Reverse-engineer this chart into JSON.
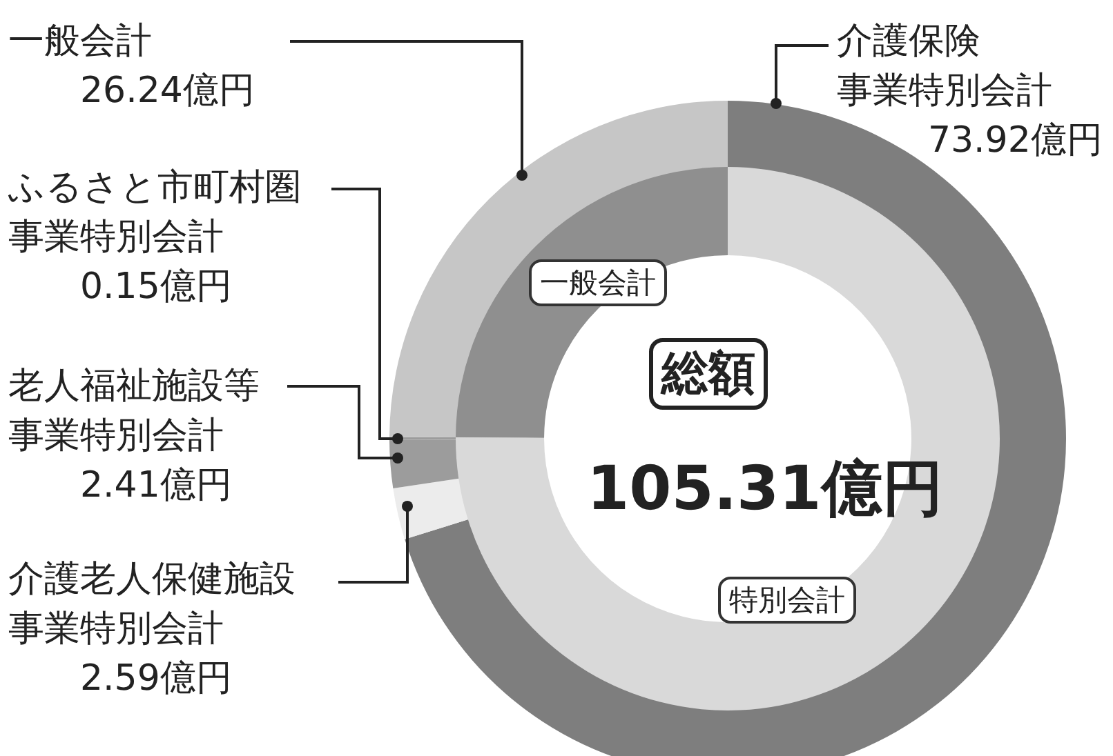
{
  "chart_data": [
    {
      "type": "donut",
      "categories": [
        "介護保険事業特別会計",
        "介護老人保健施設事業特別会計",
        "老人福祉施設等事業特別会計",
        "ふるさと市町村圏事業特別会計",
        "一般会計"
      ],
      "values": [
        73.92,
        2.59,
        2.41,
        0.15,
        26.24
      ],
      "colors": [
        "#7e7e7e",
        "#ececec",
        "#9c9c9c",
        "#9c9c9c",
        "#c6c6c6"
      ],
      "value_labels": [
        "73.92億円",
        "2.59億円",
        "2.41億円",
        "0.15億円",
        "26.24億円"
      ]
    },
    {
      "type": "donut",
      "title": "総額",
      "categories": [
        "特別会計",
        "一般会計"
      ],
      "values": [
        75.08,
        24.92
      ],
      "colors": [
        "#d9d9d9",
        "#8f8f8f"
      ],
      "annotations": [
        "105.31億円"
      ]
    }
  ]
}
